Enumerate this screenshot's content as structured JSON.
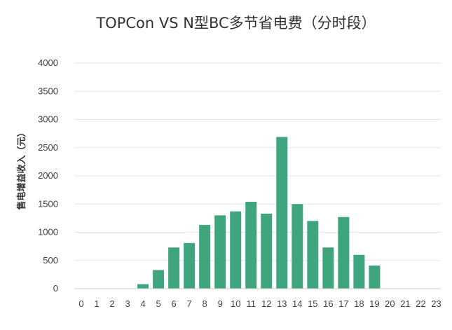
{
  "chart_data": {
    "type": "bar",
    "title": "TOPCon VS N型BC多节省电费（分时段）",
    "xlabel": "",
    "ylabel": "售电增益收入（元）",
    "categories": [
      "0",
      "1",
      "2",
      "3",
      "4",
      "5",
      "6",
      "7",
      "8",
      "9",
      "10",
      "11",
      "12",
      "13",
      "14",
      "15",
      "16",
      "17",
      "18",
      "19",
      "20",
      "21",
      "22",
      "23"
    ],
    "values": [
      0,
      0,
      0,
      0,
      80,
      330,
      730,
      810,
      1130,
      1300,
      1370,
      1540,
      1330,
      2690,
      1500,
      1200,
      730,
      1270,
      600,
      410,
      0,
      0,
      0,
      0
    ],
    "ylim": [
      0,
      4000
    ],
    "yticks": [
      0,
      500,
      1000,
      1500,
      2000,
      2500,
      3000,
      3500,
      4000
    ],
    "grid": true,
    "legend": "none",
    "bar_color": "#3fa57e"
  }
}
